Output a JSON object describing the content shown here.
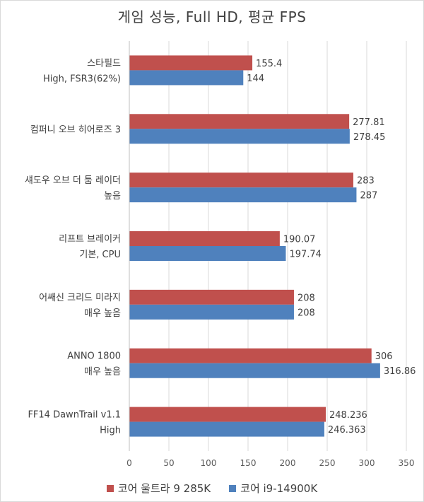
{
  "chart_data": {
    "type": "bar",
    "orientation": "horizontal",
    "title": "게임 성능, Full HD, 평균 FPS",
    "categories": [
      [
        "스타필드",
        "High, FSR3(62%)"
      ],
      [
        "컴퍼니 오브 히어로즈 3"
      ],
      [
        "섀도우 오브 더 툼 레이더",
        "높음"
      ],
      [
        "리프트 브레이커",
        "기본, CPU"
      ],
      [
        "어쌔신 크리드 미라지",
        "매우 높음"
      ],
      [
        "ANNO 1800",
        "매우 높음"
      ],
      [
        "FF14 DawnTrail v1.1",
        "High"
      ]
    ],
    "series": [
      {
        "name": "코어 울트라 9 285K",
        "color": "#c0504d",
        "values": [
          155.4,
          277.81,
          283,
          190.07,
          208,
          306,
          248.236
        ],
        "labels": [
          "155.4",
          "277.81",
          "283",
          "190.07",
          "208",
          "306",
          "248.236"
        ]
      },
      {
        "name": "코어 i9-14900K",
        "color": "#4f81bd",
        "values": [
          144,
          278.45,
          287,
          197.74,
          208,
          316.86,
          246.363
        ],
        "labels": [
          "144",
          "278.45",
          "287",
          "197.74",
          "208",
          "316.86",
          "246.363"
        ]
      }
    ],
    "xlim": [
      0,
      350
    ],
    "xticks": [
      0,
      50,
      100,
      150,
      200,
      250,
      300,
      350
    ],
    "grid": true,
    "legend_position": "bottom"
  }
}
